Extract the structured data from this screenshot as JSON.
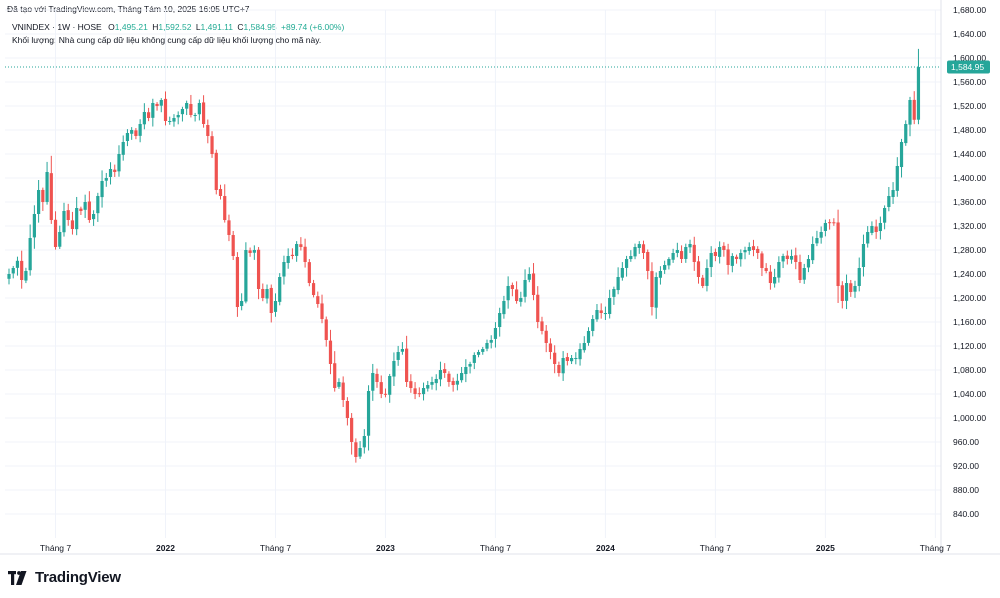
{
  "header": {
    "credit": "Đã tạo với TradingView.com, Tháng Tám 10, 2025 16:05 UTC+7"
  },
  "legend": {
    "symbol": "VNINDEX · 1W · HOSE",
    "o_label": "O",
    "o_value": "1,495.21",
    "h_label": "H",
    "h_value": "1,592.52",
    "l_label": "L",
    "l_value": "1,491.11",
    "c_label": "C",
    "c_value": "1,584.95",
    "change": "+89.74 (+6.00%)"
  },
  "volume_note": "Khối lượng: Nhà cung cấp dữ liệu không cung cấp dữ liệu khối lượng cho mã này.",
  "brand": {
    "name": "TradingView",
    "icon": "tradingview-logo-icon"
  },
  "colors": {
    "up": "#26a69a",
    "down": "#ef5350",
    "grid": "#f0f3fa",
    "price_tag": "#26a69a",
    "axis_text": "#131722"
  },
  "chart_data": {
    "type": "candlestick",
    "symbol": "VNINDEX",
    "interval": "1W",
    "exchange": "HOSE",
    "ylim": [
      800,
      1680
    ],
    "y_ticks": [
      840,
      880,
      920,
      960,
      1000,
      1040,
      1080,
      1120,
      1160,
      1200,
      1240,
      1280,
      1320,
      1360,
      1400,
      1440,
      1480,
      1520,
      1560,
      1600,
      1640,
      1680
    ],
    "y_tick_labels": [
      "840.00",
      "880.00",
      "920.00",
      "960.00",
      "1,000.00",
      "1,040.00",
      "1,080.00",
      "1,120.00",
      "1,160.00",
      "1,200.00",
      "1,240.00",
      "1,280.00",
      "1,320.00",
      "1,360.00",
      "1,400.00",
      "1,440.00",
      "1,480.00",
      "1,520.00",
      "1,560.00",
      "1,600.00",
      "1,640.00",
      "1,680.00"
    ],
    "x_ticks": [
      {
        "label": "Tháng 7",
        "index": 11,
        "bold": false
      },
      {
        "label": "2022",
        "index": 37,
        "bold": true
      },
      {
        "label": "Tháng 7",
        "index": 63,
        "bold": false
      },
      {
        "label": "2023",
        "index": 89,
        "bold": true
      },
      {
        "label": "Tháng 7",
        "index": 115,
        "bold": false
      },
      {
        "label": "2024",
        "index": 141,
        "bold": true
      },
      {
        "label": "Tháng 7",
        "index": 167,
        "bold": false
      },
      {
        "label": "2025",
        "index": 193,
        "bold": true
      },
      {
        "label": "Tháng 7",
        "index": 219,
        "bold": false
      }
    ],
    "last_price": 1584.95,
    "last_price_label": "1,584.95",
    "grid": true,
    "closes": [
      1240,
      1250,
      1262,
      1230,
      1245,
      1300,
      1340,
      1380,
      1360,
      1410,
      1330,
      1285,
      1310,
      1345,
      1330,
      1315,
      1350,
      1345,
      1360,
      1330,
      1340,
      1370,
      1395,
      1400,
      1415,
      1410,
      1440,
      1460,
      1475,
      1480,
      1470,
      1490,
      1510,
      1500,
      1525,
      1520,
      1530,
      1495,
      1495,
      1500,
      1505,
      1515,
      1525,
      1505,
      1505,
      1525,
      1490,
      1470,
      1440,
      1380,
      1370,
      1330,
      1305,
      1270,
      1185,
      1195,
      1280,
      1275,
      1280,
      1215,
      1200,
      1215,
      1175,
      1195,
      1235,
      1260,
      1270,
      1270,
      1290,
      1285,
      1260,
      1225,
      1205,
      1190,
      1165,
      1130,
      1090,
      1050,
      1060,
      1030,
      1000,
      960,
      935,
      950,
      970,
      1045,
      1075,
      1060,
      1040,
      1040,
      1070,
      1095,
      1110,
      1115,
      1060,
      1050,
      1040,
      1040,
      1050,
      1055,
      1060,
      1065,
      1080,
      1075,
      1060,
      1055,
      1062,
      1075,
      1085,
      1090,
      1105,
      1110,
      1115,
      1125,
      1130,
      1150,
      1175,
      1195,
      1220,
      1215,
      1195,
      1200,
      1230,
      1240,
      1205,
      1160,
      1145,
      1125,
      1110,
      1090,
      1075,
      1100,
      1095,
      1100,
      1100,
      1115,
      1125,
      1145,
      1165,
      1180,
      1175,
      1175,
      1200,
      1215,
      1235,
      1250,
      1265,
      1270,
      1285,
      1290,
      1275,
      1245,
      1185,
      1235,
      1245,
      1255,
      1265,
      1275,
      1280,
      1265,
      1285,
      1290,
      1260,
      1235,
      1220,
      1250,
      1275,
      1270,
      1285,
      1280,
      1255,
      1270,
      1265,
      1275,
      1280,
      1285,
      1280,
      1275,
      1250,
      1245,
      1225,
      1235,
      1260,
      1270,
      1265,
      1270,
      1260,
      1230,
      1250,
      1265,
      1290,
      1300,
      1310,
      1325,
      1325,
      1325,
      1220,
      1195,
      1225,
      1210,
      1220,
      1250,
      1290,
      1310,
      1320,
      1310,
      1325,
      1350,
      1370,
      1380,
      1420,
      1460,
      1490,
      1530,
      1497,
      1584.95
    ]
  }
}
